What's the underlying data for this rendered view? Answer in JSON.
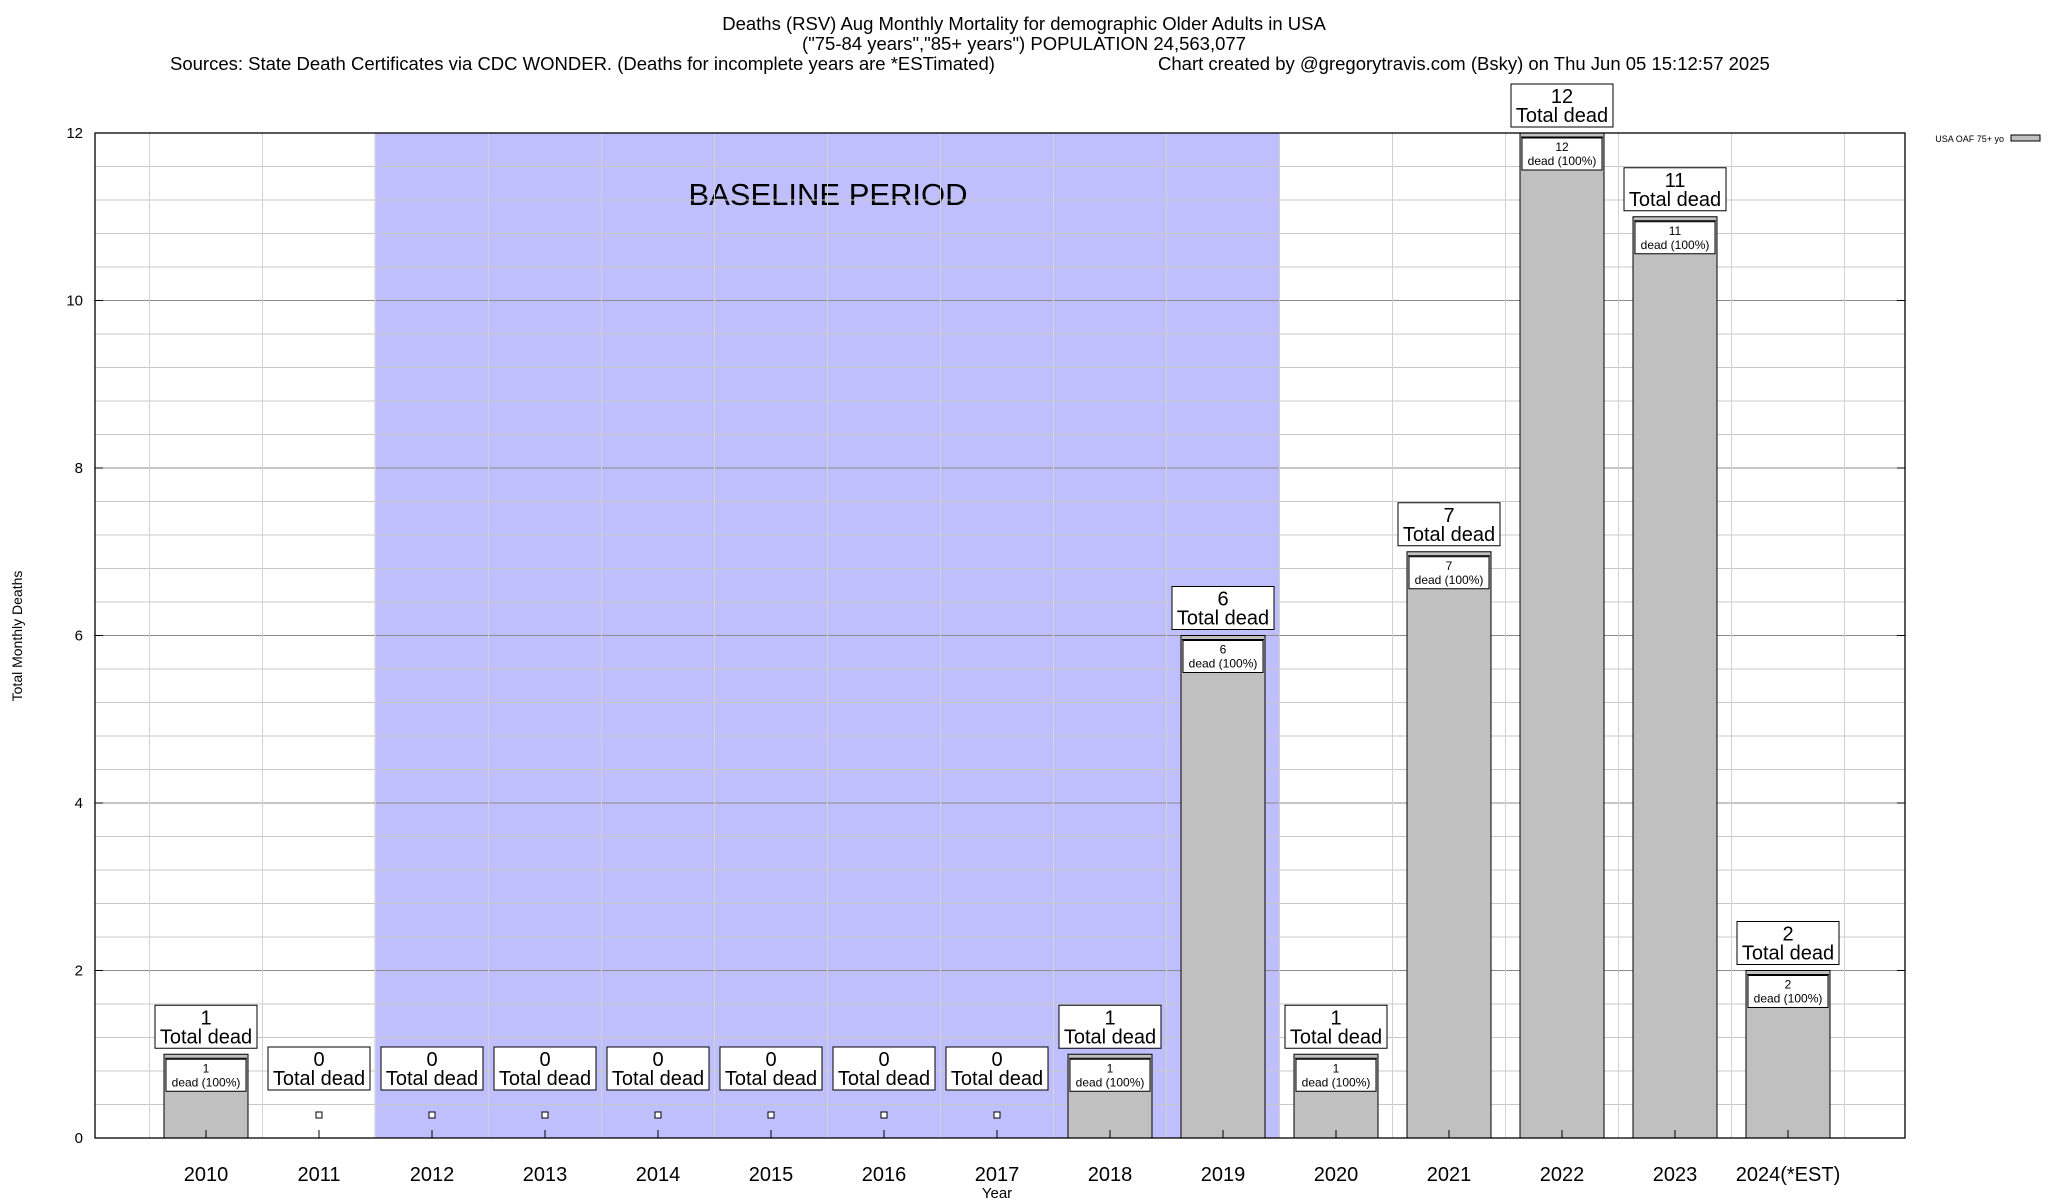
{
  "header": {
    "title_line1": "Deaths (RSV) Aug Monthly Mortality for demographic Older Adults in USA",
    "title_line2": "(\"75-84 years\",\"85+ years\") POPULATION 24,563,077",
    "sources": "Sources: State Death Certificates via CDC WONDER. (Deaths for incomplete years are *ESTimated)",
    "credit": "Chart created by @gregorytravis.com (Bsky) on Thu Jun 05 15:12:57 2025"
  },
  "chart_data": {
    "type": "bar",
    "xlabel": "Year",
    "ylabel": "Total Monthly Deaths",
    "ylim": [
      0,
      12
    ],
    "yticks": [
      0,
      2,
      4,
      6,
      8,
      10,
      12
    ],
    "grid": true,
    "legend_position": "top-right",
    "categories": [
      "2010",
      "2011",
      "2012",
      "2013",
      "2014",
      "2015",
      "2016",
      "2017",
      "2018",
      "2019",
      "2020",
      "2021",
      "2022",
      "2023",
      "2024(*EST)"
    ],
    "series": [
      {
        "name": "USA OAF 75+ yo",
        "values": [
          1,
          0,
          0,
          0,
          0,
          0,
          0,
          0,
          1,
          6,
          1,
          7,
          12,
          11,
          2
        ],
        "color": "#c0c0c0"
      }
    ],
    "total_label_suffix": "Total dead",
    "bar_label_suffix": "dead (100%)",
    "shaded_region": {
      "label": "BASELINE PERIOD",
      "from_category": "2012",
      "to_category": "2019",
      "color": "#bfbffd"
    }
  }
}
